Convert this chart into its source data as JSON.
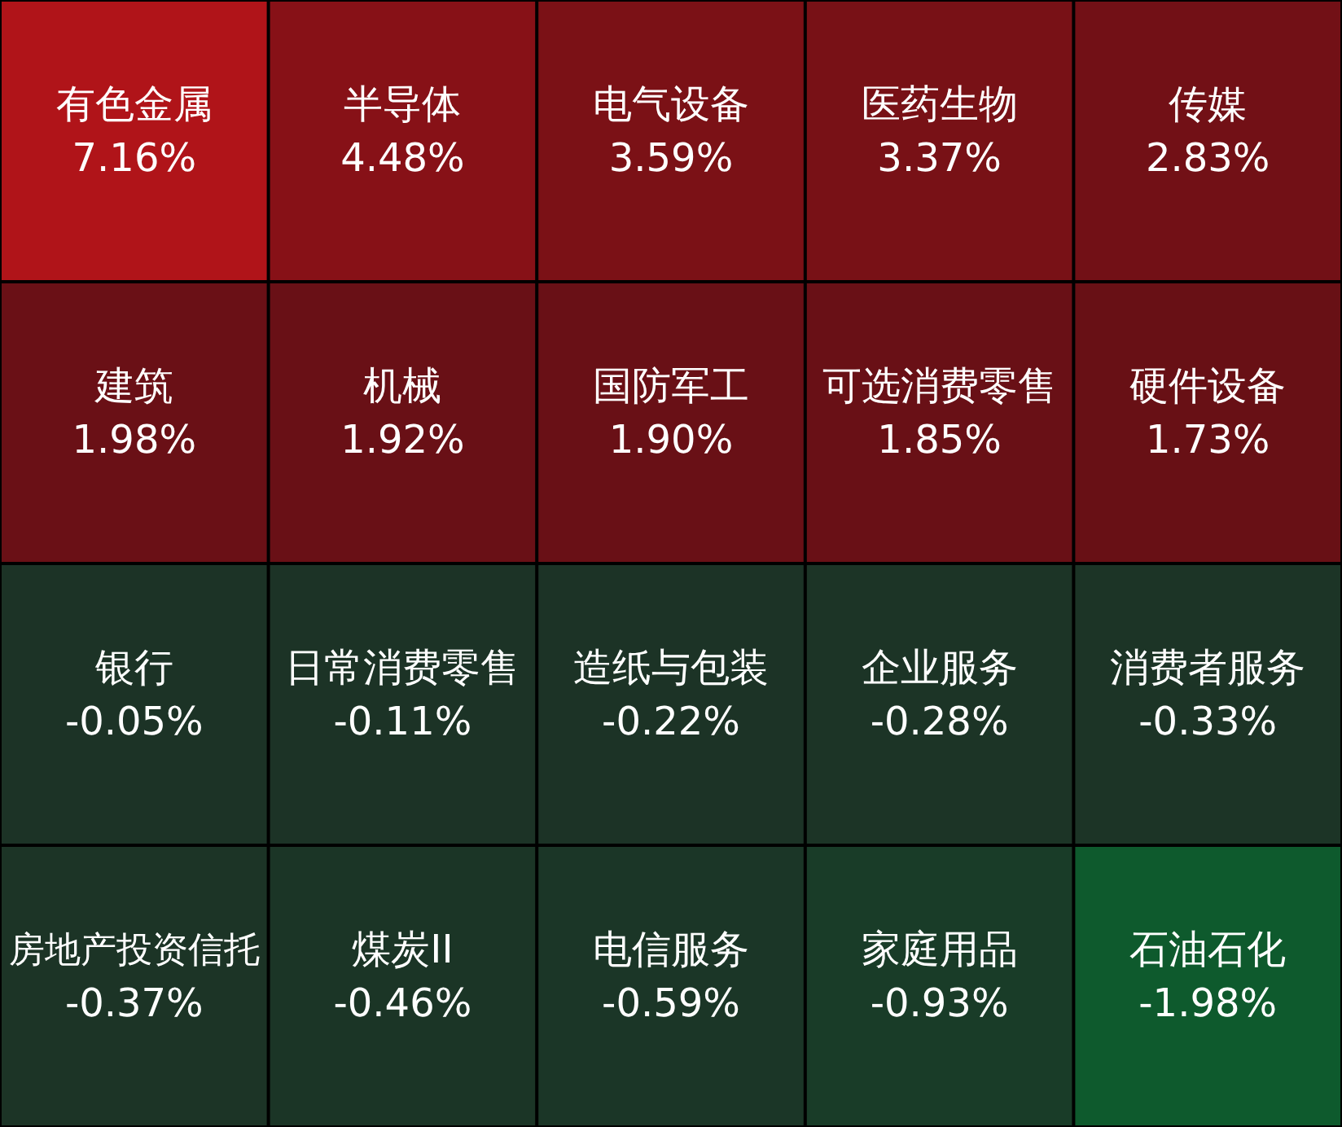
{
  "chart_data": {
    "type": "other",
    "categories": [
      "有色金属",
      "半导体",
      "电气设备",
      "医药生物",
      "传媒",
      "建筑",
      "机械",
      "国防军工",
      "可选消费零售",
      "硬件设备",
      "银行",
      "日常消费零售",
      "造纸与包装",
      "企业服务",
      "消费者服务",
      "房地产投资信托",
      "煤炭II",
      "电信服务",
      "家庭用品",
      "石油石化"
    ],
    "values": [
      7.16,
      4.48,
      3.59,
      3.37,
      2.83,
      1.98,
      1.92,
      1.9,
      1.85,
      1.73,
      -0.05,
      -0.11,
      -0.22,
      -0.28,
      -0.33,
      -0.37,
      -0.46,
      -0.59,
      -0.93,
      -1.98
    ],
    "value_labels": [
      "7.16%",
      "4.48%",
      "3.59%",
      "3.37%",
      "2.83%",
      "1.98%",
      "1.92%",
      "1.90%",
      "1.85%",
      "1.73%",
      "-0.05%",
      "-0.11%",
      "-0.22%",
      "-0.28%",
      "-0.33%",
      "-0.37%",
      "-0.46%",
      "-0.59%",
      "-0.93%",
      "-1.98%"
    ]
  }
}
